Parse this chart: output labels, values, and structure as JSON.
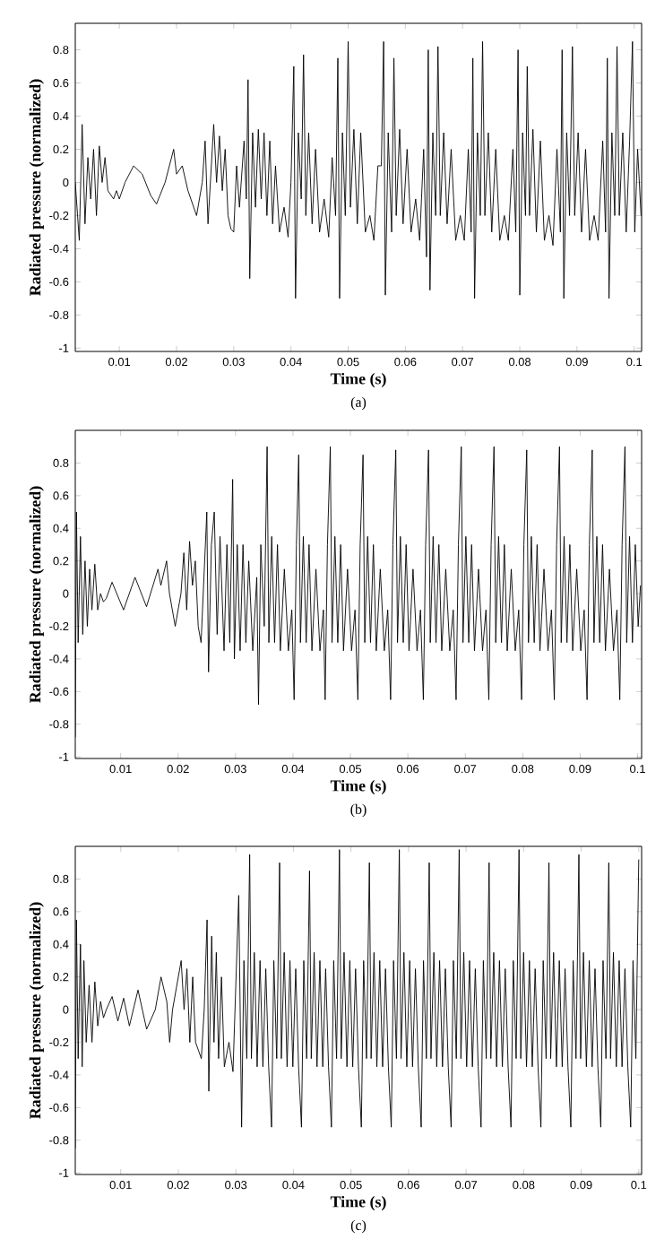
{
  "chart_data": [
    {
      "type": "line",
      "color": "#000000",
      "xlabel": "Time (s)",
      "ylabel": "Radiated pressure (normalized)",
      "annotations": [
        "(a)"
      ],
      "xlim": [
        0.0023,
        0.1013
      ],
      "ylim": [
        -1.02,
        0.96
      ],
      "xticks": [
        0.01,
        0.02,
        0.03,
        0.04,
        0.05,
        0.06,
        0.07,
        0.08,
        0.09,
        0.1
      ],
      "yticks": [
        -1,
        -0.8,
        -0.6,
        -0.4,
        -0.2,
        0,
        0.2,
        0.4,
        0.6,
        0.8
      ],
      "x": [
        0.0023,
        0.003,
        0.0035,
        0.004,
        0.0045,
        0.005,
        0.0055,
        0.006,
        0.0065,
        0.007,
        0.0075,
        0.008,
        0.009,
        0.0095,
        0.01,
        0.011,
        0.0125,
        0.014,
        0.0155,
        0.0165,
        0.018,
        0.0195,
        0.02,
        0.021,
        0.022,
        0.0235,
        0.0245,
        0.025,
        0.0255,
        0.0265,
        0.027,
        0.0275,
        0.028,
        0.0285,
        0.029,
        0.0295,
        0.03,
        0.0305,
        0.031,
        0.0318,
        0.0322,
        0.0325,
        0.0328,
        0.0333,
        0.0338,
        0.0343,
        0.0348,
        0.0353,
        0.0358,
        0.0363,
        0.0368,
        0.0373,
        0.038,
        0.0388,
        0.0395,
        0.04,
        0.0405,
        0.0408,
        0.0413,
        0.0418,
        0.0422,
        0.0426,
        0.0431,
        0.0437,
        0.0443,
        0.045,
        0.0458,
        0.0466,
        0.0472,
        0.0478,
        0.0482,
        0.0485,
        0.049,
        0.0495,
        0.05,
        0.0504,
        0.051,
        0.0516,
        0.0522,
        0.053,
        0.0538,
        0.0545,
        0.0552,
        0.0558,
        0.0562,
        0.0565,
        0.057,
        0.0576,
        0.058,
        0.0584,
        0.059,
        0.0596,
        0.0603,
        0.061,
        0.0618,
        0.0625,
        0.0632,
        0.0637,
        0.064,
        0.0643,
        0.0648,
        0.0653,
        0.0657,
        0.0661,
        0.0667,
        0.0673,
        0.068,
        0.0688,
        0.0696,
        0.0703,
        0.071,
        0.0715,
        0.0718,
        0.0721,
        0.0726,
        0.0731,
        0.0735,
        0.0739,
        0.0745,
        0.0751,
        0.0758,
        0.0765,
        0.0773,
        0.078,
        0.0788,
        0.0793,
        0.0797,
        0.08,
        0.0805,
        0.081,
        0.0813,
        0.0817,
        0.0823,
        0.0829,
        0.0836,
        0.0843,
        0.0851,
        0.0858,
        0.0865,
        0.0871,
        0.0874,
        0.0877,
        0.0882,
        0.0887,
        0.0892,
        0.0896,
        0.0902,
        0.0908,
        0.0915,
        0.0922,
        0.093,
        0.0937,
        0.0945,
        0.095,
        0.0953,
        0.0956,
        0.0961,
        0.0966,
        0.097,
        0.0974,
        0.098,
        0.0986,
        0.0992,
        0.0997,
        0.1001,
        0.1006,
        0.1012
      ],
      "values": [
        0,
        -0.35,
        0.35,
        -0.25,
        0.15,
        -0.1,
        0.2,
        -0.2,
        0.22,
        0,
        0.15,
        -0.05,
        -0.1,
        -0.05,
        -0.1,
        0,
        0.1,
        0.05,
        -0.08,
        -0.13,
        0,
        0.2,
        0.05,
        0.1,
        -0.05,
        -0.2,
        0,
        0.25,
        -0.25,
        0.35,
        0,
        0.28,
        -0.05,
        0.2,
        -0.2,
        -0.28,
        -0.3,
        0.1,
        -0.15,
        0.25,
        -0.1,
        0.62,
        -0.58,
        0.3,
        -0.15,
        0.32,
        -0.1,
        0.3,
        -0.2,
        0.25,
        -0.25,
        0.1,
        -0.3,
        -0.15,
        -0.33,
        0,
        0.7,
        -0.7,
        0.3,
        -0.1,
        0.77,
        -0.2,
        0.3,
        -0.25,
        0.2,
        -0.3,
        -0.1,
        -0.33,
        0.15,
        -0.2,
        0.75,
        -0.7,
        0.3,
        -0.2,
        0.85,
        -0.15,
        0.32,
        -0.25,
        0.3,
        -0.3,
        -0.2,
        -0.35,
        0.1,
        0.1,
        0.85,
        -0.68,
        0.3,
        -0.3,
        0.75,
        -0.2,
        0.32,
        -0.25,
        0.2,
        -0.3,
        -0.1,
        -0.35,
        0.2,
        -0.45,
        0.8,
        -0.65,
        0.3,
        -0.2,
        0.82,
        -0.2,
        0.3,
        -0.25,
        0.2,
        -0.35,
        -0.2,
        -0.35,
        0.2,
        -0.3,
        0.75,
        -0.7,
        0.3,
        -0.2,
        0.85,
        -0.2,
        0.3,
        -0.3,
        0.2,
        -0.35,
        -0.2,
        -0.35,
        0.2,
        -0.3,
        0.8,
        -0.68,
        0.3,
        -0.2,
        0.7,
        -0.2,
        0.32,
        -0.3,
        0.25,
        -0.35,
        -0.2,
        -0.38,
        0.2,
        -0.3,
        0.8,
        -0.7,
        0.3,
        -0.2,
        0.82,
        -0.2,
        0.3,
        -0.3,
        0.2,
        -0.35,
        -0.2,
        -0.35,
        0.25,
        -0.3,
        0.75,
        -0.7,
        0.3,
        -0.2,
        0.82,
        -0.2,
        0.3,
        -0.3,
        0.25,
        0.85,
        -0.3,
        0.2,
        -0.2
      ]
    },
    {
      "type": "line",
      "color": "#000000",
      "xlabel": "Time (s)",
      "ylabel": "Radiated pressure (normalized)",
      "annotations": [
        "(b)"
      ],
      "xlim": [
        0.0021,
        0.1007
      ],
      "ylim": [
        -1.01,
        1
      ],
      "xticks": [
        0.01,
        0.02,
        0.03,
        0.04,
        0.05,
        0.06,
        0.07,
        0.08,
        0.09,
        0.1
      ],
      "yticks": [
        -1,
        -0.8,
        -0.6,
        -0.4,
        -0.2,
        0,
        0.2,
        0.4,
        0.6,
        0.8
      ],
      "x": [
        0.0021,
        0.0023,
        0.0026,
        0.003,
        0.0034,
        0.0038,
        0.0042,
        0.0046,
        0.005,
        0.0055,
        0.006,
        0.0065,
        0.007,
        0.0075,
        0.0085,
        0.0105,
        0.0125,
        0.0145,
        0.0165,
        0.017,
        0.018,
        0.0185,
        0.0195,
        0.0205,
        0.021,
        0.0215,
        0.022,
        0.0225,
        0.023,
        0.0235,
        0.024,
        0.0245,
        0.025,
        0.0253,
        0.0258,
        0.0263,
        0.0268,
        0.0273,
        0.028,
        0.0285,
        0.029,
        0.0295,
        0.0298,
        0.0303,
        0.0308,
        0.0313,
        0.0318,
        0.0323,
        0.033,
        0.0337,
        0.034,
        0.0344,
        0.035,
        0.0355,
        0.0358,
        0.0363,
        0.0368,
        0.0373,
        0.0378,
        0.0385,
        0.0392,
        0.0398,
        0.0402,
        0.0406,
        0.041,
        0.0413,
        0.0418,
        0.0423,
        0.0428,
        0.0433,
        0.044,
        0.0447,
        0.0453,
        0.0456,
        0.046,
        0.0465,
        0.0468,
        0.0473,
        0.0478,
        0.0483,
        0.0488,
        0.0495,
        0.0502,
        0.0508,
        0.0513,
        0.0517,
        0.0522,
        0.0525,
        0.053,
        0.0535,
        0.054,
        0.0545,
        0.0552,
        0.0559,
        0.0565,
        0.057,
        0.0574,
        0.0579,
        0.0582,
        0.0587,
        0.0592,
        0.0597,
        0.0602,
        0.0609,
        0.0616,
        0.0622,
        0.0627,
        0.0631,
        0.0636,
        0.0639,
        0.0644,
        0.0649,
        0.0654,
        0.0659,
        0.0666,
        0.0673,
        0.0679,
        0.0684,
        0.0688,
        0.0693,
        0.0696,
        0.0701,
        0.0706,
        0.0711,
        0.0716,
        0.0723,
        0.073,
        0.0736,
        0.0741,
        0.0745,
        0.075,
        0.0753,
        0.0758,
        0.0763,
        0.0768,
        0.0773,
        0.078,
        0.0787,
        0.0793,
        0.0798,
        0.0802,
        0.0807,
        0.081,
        0.0815,
        0.082,
        0.0825,
        0.083,
        0.0837,
        0.0844,
        0.085,
        0.0855,
        0.0859,
        0.0864,
        0.0867,
        0.0872,
        0.0877,
        0.0882,
        0.0887,
        0.0894,
        0.0901,
        0.0907,
        0.0912,
        0.0916,
        0.0921,
        0.0924,
        0.0929,
        0.0934,
        0.0939,
        0.0944,
        0.0951,
        0.0958,
        0.0964,
        0.0969,
        0.0973,
        0.0978,
        0.0981,
        0.0986,
        0.0991,
        0.0996,
        0.1001,
        0.1005
      ],
      "values": [
        -0.88,
        0.5,
        -0.3,
        0.35,
        -0.25,
        0.2,
        -0.2,
        0.15,
        -0.1,
        0.18,
        -0.1,
        0,
        -0.05,
        -0.03,
        0.07,
        -0.1,
        0.1,
        -0.08,
        0.15,
        0.05,
        0.2,
        0,
        -0.2,
        0,
        0.25,
        -0.1,
        0.32,
        0.05,
        0.2,
        -0.2,
        -0.3,
        0.1,
        0.5,
        -0.48,
        0.3,
        0.5,
        -0.25,
        0.35,
        -0.35,
        0.3,
        -0.3,
        0.7,
        -0.4,
        0.3,
        -0.35,
        0.3,
        -0.3,
        0.2,
        -0.35,
        0.1,
        -0.68,
        0.3,
        -0.2,
        0.9,
        -0.3,
        0.35,
        -0.3,
        0.3,
        -0.35,
        0.15,
        -0.35,
        -0.1,
        -0.65,
        0.3,
        0.85,
        -0.3,
        0.35,
        -0.3,
        0.3,
        -0.35,
        0.15,
        -0.35,
        -0.1,
        -0.65,
        0.3,
        0.9,
        -0.3,
        0.35,
        -0.3,
        0.3,
        -0.35,
        0.15,
        -0.35,
        -0.1,
        -0.65,
        0.3,
        0.85,
        -0.3,
        0.35,
        -0.3,
        0.3,
        -0.35,
        0.15,
        -0.35,
        -0.1,
        -0.65,
        0.3,
        0.88,
        -0.3,
        0.35,
        -0.3,
        0.3,
        -0.35,
        0.15,
        -0.35,
        -0.1,
        -0.65,
        0.3,
        0.88,
        -0.3,
        0.35,
        -0.3,
        0.3,
        -0.35,
        0.15,
        -0.35,
        -0.1,
        -0.65,
        0.3,
        0.9,
        -0.3,
        0.35,
        -0.3,
        0.3,
        -0.35,
        0.15,
        -0.35,
        -0.1,
        -0.65,
        0.3,
        0.9,
        -0.3,
        0.35,
        -0.3,
        0.3,
        -0.35,
        0.15,
        -0.35,
        -0.1,
        -0.65,
        0.3,
        0.88,
        -0.3,
        0.35,
        -0.3,
        0.3,
        -0.35,
        0.15,
        -0.35,
        -0.1,
        -0.65,
        0.3,
        0.9,
        -0.3,
        0.35,
        -0.3,
        0.3,
        -0.35,
        0.15,
        -0.35,
        -0.1,
        -0.65,
        0.3,
        0.88,
        -0.3,
        0.35,
        -0.3,
        0.3,
        -0.35,
        0.15,
        -0.35,
        -0.1,
        -0.65,
        0.3,
        0.9,
        -0.3,
        0.35,
        -0.3,
        0.3,
        -0.2,
        0.05
      ]
    },
    {
      "type": "line",
      "color": "#000000",
      "xlabel": "Time (s)",
      "ylabel": "Radiated pressure (normalized)",
      "annotations": [
        "(c)"
      ],
      "xlim": [
        0.0021,
        0.1005
      ],
      "ylim": [
        -1.01,
        1
      ],
      "xticks": [
        0.01,
        0.02,
        0.03,
        0.04,
        0.05,
        0.06,
        0.07,
        0.08,
        0.09,
        0.1
      ],
      "yticks": [
        -1,
        -0.8,
        -0.6,
        -0.4,
        -0.2,
        0,
        0.2,
        0.4,
        0.6,
        0.8
      ],
      "x": [
        0.0021,
        0.0023,
        0.0026,
        0.003,
        0.0033,
        0.0036,
        0.004,
        0.0045,
        0.005,
        0.0055,
        0.006,
        0.0065,
        0.007,
        0.0075,
        0.0085,
        0.0095,
        0.0105,
        0.0115,
        0.013,
        0.0145,
        0.016,
        0.017,
        0.018,
        0.0185,
        0.019,
        0.0205,
        0.021,
        0.0215,
        0.022,
        0.0225,
        0.023,
        0.024,
        0.0245,
        0.025,
        0.0253,
        0.0258,
        0.0262,
        0.0266,
        0.027,
        0.0275,
        0.028,
        0.0288,
        0.0295,
        0.0305,
        0.031,
        0.0314,
        0.0319,
        0.0324,
        0.0327,
        0.0332,
        0.0337,
        0.0342,
        0.0347,
        0.0352,
        0.0357,
        0.0362,
        0.0366,
        0.0371,
        0.0376,
        0.0379,
        0.0384,
        0.0389,
        0.0394,
        0.0399,
        0.0404,
        0.0409,
        0.0414,
        0.0418,
        0.0423,
        0.0428,
        0.0431,
        0.0436,
        0.0441,
        0.0446,
        0.0451,
        0.0456,
        0.0461,
        0.0466,
        0.047,
        0.0475,
        0.048,
        0.0483,
        0.0488,
        0.0493,
        0.0498,
        0.0503,
        0.0508,
        0.0513,
        0.0518,
        0.0522,
        0.0527,
        0.0532,
        0.0535,
        0.054,
        0.0545,
        0.055,
        0.0555,
        0.056,
        0.0565,
        0.057,
        0.0574,
        0.0579,
        0.0584,
        0.0587,
        0.0592,
        0.0597,
        0.0602,
        0.0607,
        0.0612,
        0.0617,
        0.0622,
        0.0626,
        0.0631,
        0.0636,
        0.0639,
        0.0644,
        0.0649,
        0.0654,
        0.0659,
        0.0664,
        0.0669,
        0.0674,
        0.0678,
        0.0683,
        0.0688,
        0.0691,
        0.0696,
        0.0701,
        0.0706,
        0.0711,
        0.0716,
        0.0721,
        0.0726,
        0.073,
        0.0735,
        0.074,
        0.0743,
        0.0748,
        0.0753,
        0.0758,
        0.0763,
        0.0768,
        0.0773,
        0.0778,
        0.0782,
        0.0787,
        0.0792,
        0.0795,
        0.08,
        0.0805,
        0.081,
        0.0815,
        0.082,
        0.0825,
        0.083,
        0.0834,
        0.0839,
        0.0844,
        0.0847,
        0.0852,
        0.0857,
        0.0862,
        0.0867,
        0.0872,
        0.0877,
        0.0882,
        0.0886,
        0.0891,
        0.0896,
        0.0899,
        0.0904,
        0.0909,
        0.0914,
        0.0919,
        0.0924,
        0.0929,
        0.0934,
        0.0938,
        0.0943,
        0.0948,
        0.0951,
        0.0956,
        0.0961,
        0.0966,
        0.0971,
        0.0976,
        0.0981,
        0.0986,
        0.099,
        0.0995,
        0.1
      ],
      "values": [
        -0.85,
        0.55,
        -0.3,
        0.4,
        -0.35,
        0.3,
        -0.2,
        0.15,
        -0.2,
        0.17,
        -0.1,
        0.05,
        -0.05,
        0,
        0.08,
        -0.07,
        0.07,
        -0.1,
        0.12,
        -0.12,
        0,
        0.2,
        0.05,
        -0.2,
        0,
        0.3,
        0,
        0.25,
        -0.2,
        0.2,
        -0.2,
        -0.3,
        0,
        0.55,
        -0.5,
        0.45,
        -0.2,
        0.35,
        -0.3,
        0.2,
        -0.35,
        -0.2,
        -0.38,
        0.7,
        -0.72,
        0.3,
        -0.3,
        0.95,
        -0.3,
        0.35,
        -0.35,
        0.3,
        -0.35,
        0.25,
        -0.35,
        -0.72,
        0.3,
        -0.3,
        0.9,
        -0.3,
        0.35,
        -0.35,
        0.3,
        -0.35,
        0.25,
        -0.35,
        -0.72,
        0.3,
        -0.3,
        0.85,
        -0.3,
        0.35,
        -0.35,
        0.3,
        -0.35,
        0.25,
        -0.35,
        -0.72,
        0.3,
        -0.3,
        0.98,
        -0.3,
        0.35,
        -0.35,
        0.3,
        -0.35,
        0.25,
        -0.35,
        -0.72,
        0.3,
        -0.3,
        0.9,
        -0.3,
        0.35,
        -0.35,
        0.3,
        -0.35,
        0.25,
        -0.35,
        -0.72,
        0.3,
        -0.3,
        0.98,
        -0.3,
        0.35,
        -0.35,
        0.3,
        -0.35,
        0.25,
        -0.35,
        -0.72,
        0.3,
        -0.3,
        0.9,
        -0.3,
        0.35,
        -0.35,
        0.3,
        -0.35,
        0.25,
        -0.35,
        -0.72,
        0.3,
        -0.3,
        0.98,
        -0.3,
        0.35,
        -0.35,
        0.3,
        -0.35,
        0.25,
        -0.35,
        -0.72,
        0.3,
        -0.3,
        0.9,
        -0.3,
        0.35,
        -0.35,
        0.3,
        -0.35,
        0.25,
        -0.35,
        -0.72,
        0.3,
        -0.3,
        0.98,
        -0.3,
        0.35,
        -0.35,
        0.3,
        -0.35,
        0.25,
        -0.35,
        -0.72,
        0.3,
        -0.3,
        0.9,
        -0.3,
        0.35,
        -0.35,
        0.3,
        -0.35,
        0.25,
        -0.35,
        -0.72,
        0.3,
        -0.3,
        0.95,
        -0.3,
        0.35,
        -0.35,
        0.3,
        -0.35,
        0.25,
        -0.35,
        -0.72,
        0.3,
        -0.3,
        0.9,
        -0.3,
        0.35,
        -0.35,
        0.3,
        -0.35,
        0.25,
        -0.35,
        -0.72,
        0.3,
        -0.3,
        0.92
      ]
    }
  ]
}
